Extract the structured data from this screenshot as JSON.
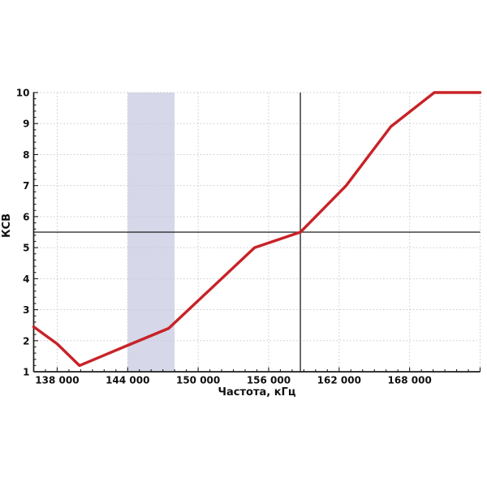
{
  "page": {
    "background": "#ffffff"
  },
  "chart_data": {
    "type": "line",
    "title": "",
    "xlabel": "Частота, кГц",
    "ylabel": "КСВ",
    "xlim": [
      136000,
      174000
    ],
    "ylim": [
      1,
      10
    ],
    "grid": true,
    "legend": null,
    "x_major_ticks": [
      138000,
      144000,
      150000,
      156000,
      162000,
      168000,
      174000
    ],
    "x_tick_labels": [
      "138 000",
      "144 000",
      "150 000",
      "156 000",
      "162 000",
      "168 000",
      ""
    ],
    "x_minor_step": 1000,
    "y_major_ticks": [
      1,
      2,
      3,
      4,
      5,
      6,
      7,
      8,
      9,
      10
    ],
    "y_tick_labels": [
      "1",
      "2",
      "3",
      "4",
      "5",
      "6",
      "7",
      "8",
      "9",
      "10"
    ],
    "y_minor_step": 0.2,
    "highlight_band": {
      "x_start": 144000,
      "x_end": 148000,
      "color": "#d6d8e9"
    },
    "crosshair": {
      "x": 158700,
      "y": 5.5,
      "color": "#1c1c1c"
    },
    "series": [
      {
        "name": "КСВ",
        "color": "#c82227",
        "stroke_width": 3.4,
        "points": [
          [
            136000,
            2.45
          ],
          [
            138000,
            1.9
          ],
          [
            139900,
            1.2
          ],
          [
            144000,
            1.85
          ],
          [
            147500,
            2.4
          ],
          [
            154800,
            5.0
          ],
          [
            158700,
            5.5
          ],
          [
            162600,
            7.0
          ],
          [
            166400,
            8.9
          ],
          [
            170100,
            10.0
          ],
          [
            174000,
            10.0
          ]
        ]
      }
    ],
    "colors": {
      "grid": "#c7c8cf",
      "axis": "#1c1c1c",
      "text": "#101010",
      "background": "#ffffff"
    }
  }
}
